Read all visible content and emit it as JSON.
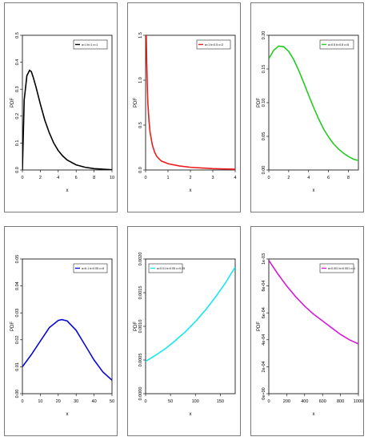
{
  "chart_data": [
    {
      "type": "line",
      "color": "#000000",
      "legend": {
        "text": "a=1 b=1 c=1",
        "position": "top-right"
      },
      "xlabel": "x",
      "ylabel": "PDF",
      "xlim": [
        0,
        10
      ],
      "ylim": [
        0,
        0.5
      ],
      "xticks": [
        0,
        2,
        4,
        6,
        8,
        10
      ],
      "xtick_labels": [
        "0",
        "2",
        "4",
        "6",
        "8",
        "10"
      ],
      "yticks": [
        0,
        0.1,
        0.2,
        0.3,
        0.4,
        0.5
      ],
      "ytick_labels": [
        "0.0",
        "0.1",
        "0.2",
        "0.3",
        "0.4",
        "0.5"
      ],
      "x": [
        0,
        0.2,
        0.5,
        0.8,
        1,
        1.2,
        1.5,
        2,
        2.5,
        3,
        3.5,
        4,
        4.5,
        5,
        6,
        7,
        8,
        9,
        10
      ],
      "y": [
        0,
        0.26,
        0.35,
        0.37,
        0.365,
        0.345,
        0.31,
        0.245,
        0.185,
        0.138,
        0.1,
        0.072,
        0.052,
        0.037,
        0.019,
        0.01,
        0.005,
        0.003,
        0.001
      ]
    },
    {
      "type": "line",
      "color": "#ee1c1c",
      "legend": {
        "text": "a=1 b=0.5 c=2",
        "position": "top-right"
      },
      "xlabel": "x",
      "ylabel": "PDF",
      "xlim": [
        0,
        4
      ],
      "ylim": [
        0,
        1.5
      ],
      "xticks": [
        0,
        1,
        2,
        3,
        4
      ],
      "xtick_labels": [
        "0",
        "1",
        "2",
        "3",
        "4"
      ],
      "yticks": [
        0,
        0.5,
        1.0,
        1.5
      ],
      "ytick_labels": [
        "0.0",
        "0.5",
        "1.0",
        "1.5"
      ],
      "x": [
        0.03,
        0.05,
        0.08,
        0.1,
        0.15,
        0.2,
        0.3,
        0.4,
        0.5,
        0.7,
        1,
        1.5,
        2,
        3,
        4
      ],
      "y": [
        1.5,
        1.2,
        0.9,
        0.75,
        0.55,
        0.42,
        0.28,
        0.2,
        0.15,
        0.1,
        0.07,
        0.045,
        0.03,
        0.015,
        0.008
      ]
    },
    {
      "type": "line",
      "color": "#22cc22",
      "legend": {
        "text": "a=0.5 b=0.8 c=5",
        "position": "top-right"
      },
      "xlabel": "x",
      "ylabel": "PDF",
      "xlim": [
        0,
        9
      ],
      "ylim": [
        0,
        0.2
      ],
      "xticks": [
        0,
        2,
        4,
        6,
        8
      ],
      "xtick_labels": [
        "0",
        "2",
        "4",
        "6",
        "8"
      ],
      "yticks": [
        0,
        0.05,
        0.1,
        0.15,
        0.2
      ],
      "ytick_labels": [
        "0.00",
        "0.05",
        "0.10",
        "0.15",
        "0.20"
      ],
      "x": [
        0,
        0.5,
        1,
        1.5,
        2,
        2.5,
        3,
        3.5,
        4,
        4.5,
        5,
        5.5,
        6,
        6.5,
        7,
        7.5,
        8,
        8.5,
        9
      ],
      "y": [
        0.165,
        0.178,
        0.184,
        0.183,
        0.176,
        0.164,
        0.148,
        0.13,
        0.111,
        0.093,
        0.076,
        0.061,
        0.049,
        0.039,
        0.031,
        0.025,
        0.02,
        0.016,
        0.014
      ]
    },
    {
      "type": "line",
      "color": "#0a0ad6",
      "legend": {
        "text": "a=6.1 b=0.05 c=8",
        "position": "top-right"
      },
      "xlabel": "x",
      "ylabel": "PDF",
      "xlim": [
        0,
        50
      ],
      "ylim": [
        0,
        0.05
      ],
      "xticks": [
        0,
        10,
        20,
        30,
        40,
        50
      ],
      "xtick_labels": [
        "0",
        "10",
        "20",
        "30",
        "40",
        "50"
      ],
      "yticks": [
        0,
        0.01,
        0.02,
        0.03,
        0.04,
        0.05
      ],
      "ytick_labels": [
        "0.00",
        "0.01",
        "0.02",
        "0.03",
        "0.04",
        "0.05"
      ],
      "x": [
        0,
        5,
        10,
        15,
        20,
        22,
        25,
        30,
        35,
        40,
        45,
        50
      ],
      "y": [
        0.01,
        0.0145,
        0.0195,
        0.0245,
        0.0272,
        0.0275,
        0.027,
        0.0235,
        0.018,
        0.0125,
        0.008,
        0.005
      ]
    },
    {
      "type": "line",
      "color": "#15e8f0",
      "legend": {
        "text": "a=0.01 b=0.05 c=0.25",
        "position": "top-left"
      },
      "xlabel": "x",
      "ylabel": "PDF",
      "xlim": [
        0,
        180
      ],
      "ylim": [
        0,
        0.002
      ],
      "xticks": [
        0,
        50,
        100,
        150
      ],
      "xtick_labels": [
        "0",
        "50",
        "100",
        "150"
      ],
      "yticks": [
        0,
        0.0005,
        0.001,
        0.0015,
        0.002
      ],
      "ytick_labels": [
        "0.0000",
        "0.0005",
        "0.0010",
        "0.0015",
        "0.0020"
      ],
      "x": [
        0,
        20,
        40,
        60,
        80,
        100,
        120,
        140,
        160,
        180
      ],
      "y": [
        0.00048,
        0.00057,
        0.00067,
        0.00079,
        0.00092,
        0.00107,
        0.00124,
        0.00143,
        0.00164,
        0.00188
      ]
    },
    {
      "type": "line",
      "color": "#d41cd4",
      "legend": {
        "text": "a=0.001 b=0.001 c=1",
        "position": "top-right"
      },
      "xlabel": "x",
      "ylabel": "PDF",
      "xlim": [
        0,
        1000
      ],
      "ylim": [
        0,
        0.001
      ],
      "xticks": [
        0,
        200,
        400,
        600,
        800,
        1000
      ],
      "xtick_labels": [
        "0",
        "200",
        "400",
        "600",
        "800",
        "1000"
      ],
      "yticks": [
        0,
        0.0002,
        0.0004,
        0.0006,
        0.0008,
        0.001
      ],
      "ytick_labels": [
        "0e+00",
        "2e-04",
        "4e-04",
        "6e-04",
        "8e-04",
        "1e-03"
      ],
      "x": [
        0,
        100,
        200,
        300,
        400,
        500,
        600,
        700,
        800,
        900,
        1000
      ],
      "y": [
        0.00099,
        0.00089,
        0.0008,
        0.00072,
        0.00065,
        0.00059,
        0.00054,
        0.00049,
        0.00044,
        0.0004,
        0.00037
      ]
    }
  ]
}
